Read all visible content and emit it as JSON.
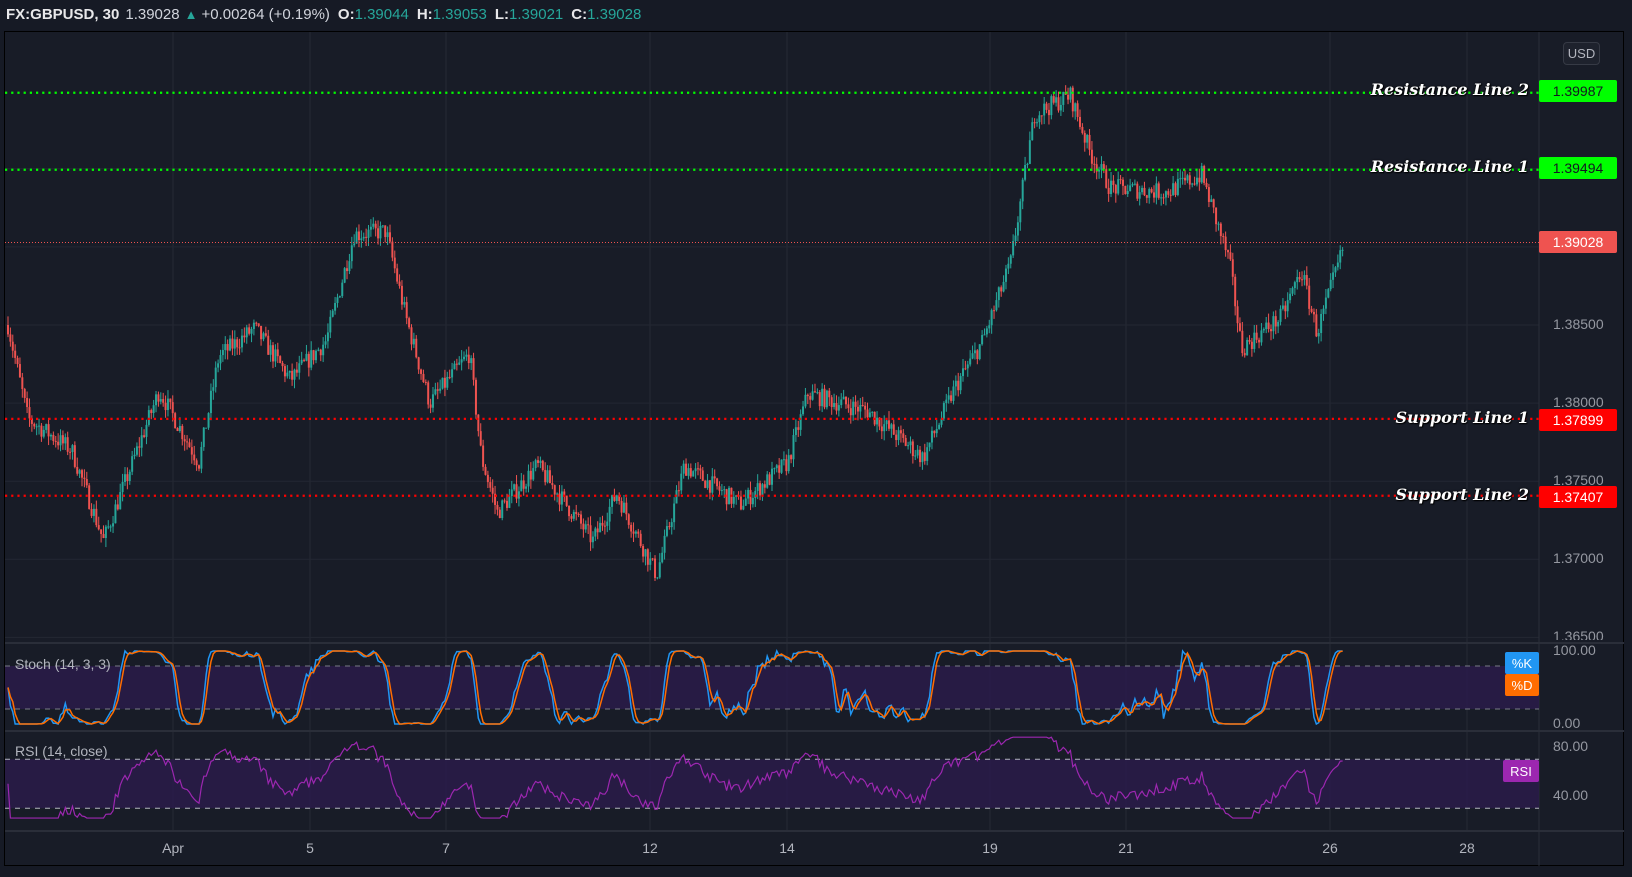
{
  "header": {
    "symbol": "FX:GBPUSD, 30",
    "last": "1.39028",
    "change": "+0.00264 (+0.19%)",
    "open_label": "O:",
    "open": "1.39044",
    "high_label": "H:",
    "high": "1.39053",
    "low_label": "L:",
    "low": "1.39021",
    "close_label": "C:",
    "close": "1.39028"
  },
  "currency_button": "USD",
  "price_axis": {
    "ticks": [
      "1.38500",
      "1.38000",
      "1.37500",
      "1.37000",
      "1.36500"
    ]
  },
  "levels": {
    "resistance_2": {
      "label": "Resistance Line 2",
      "price": "1.39987",
      "color": "#00ff00"
    },
    "resistance_1": {
      "label": "Resistance Line 1",
      "price": "1.39494",
      "color": "#00ff00"
    },
    "current": {
      "price": "1.39028",
      "color": "#ef5350"
    },
    "support_1": {
      "label": "Support Line 1",
      "price": "1.37899",
      "color": "#ff0000"
    },
    "support_2": {
      "label": "Support Line 2",
      "price": "1.37407",
      "color": "#ff0000"
    }
  },
  "stoch": {
    "title": "Stoch (14, 3, 3)",
    "k_label": "%K",
    "d_label": "%D",
    "axis": [
      "100.00",
      "0.00"
    ],
    "k_color": "#2196f3",
    "d_color": "#ff6d00"
  },
  "rsi": {
    "title": "RSI (14, close)",
    "label": "RSI",
    "axis": [
      "80.00",
      "40.00"
    ],
    "color": "#9c27b0"
  },
  "x_axis": {
    "labels": [
      "Apr",
      "5",
      "7",
      "12",
      "14",
      "19",
      "21",
      "26",
      "28"
    ]
  },
  "colors": {
    "up": "#26a69a",
    "down": "#ef5350",
    "background": "#181c27",
    "band": "#2a1a4a"
  },
  "chart_data": {
    "type": "candlestick",
    "title": "FX:GBPUSD, 30",
    "xlabel": "",
    "ylabel": "USD",
    "x_tick_labels": [
      "Apr",
      "5",
      "7",
      "12",
      "14",
      "19",
      "21",
      "26",
      "28"
    ],
    "ylim": [
      1.365,
      1.4015
    ],
    "price_path": [
      [
        0.0,
        1.385
      ],
      [
        0.5,
        1.379
      ],
      [
        1.6,
        1.377
      ],
      [
        2.4,
        1.3712
      ],
      [
        3.8,
        1.3808
      ],
      [
        4.8,
        1.3762
      ],
      [
        5.3,
        1.383
      ],
      [
        6.2,
        1.3848
      ],
      [
        7.1,
        1.3815
      ],
      [
        8.0,
        1.384
      ],
      [
        8.7,
        1.3908
      ],
      [
        9.5,
        1.391
      ],
      [
        10.0,
        1.3855
      ],
      [
        10.6,
        1.38
      ],
      [
        11.6,
        1.3832
      ],
      [
        11.9,
        1.3765
      ],
      [
        12.3,
        1.373
      ],
      [
        13.3,
        1.376
      ],
      [
        14.7,
        1.3712
      ],
      [
        15.3,
        1.3742
      ],
      [
        16.3,
        1.369
      ],
      [
        17.0,
        1.376
      ],
      [
        18.4,
        1.3735
      ],
      [
        19.6,
        1.3762
      ],
      [
        20.1,
        1.3806
      ],
      [
        21.6,
        1.3795
      ],
      [
        23.0,
        1.3765
      ],
      [
        23.8,
        1.381
      ],
      [
        24.5,
        1.384
      ],
      [
        25.2,
        1.389
      ],
      [
        25.8,
        1.3985
      ],
      [
        26.7,
        1.3997
      ],
      [
        27.2,
        1.396
      ],
      [
        27.7,
        1.3938
      ],
      [
        29.1,
        1.3935
      ],
      [
        30.0,
        1.3946
      ],
      [
        30.7,
        1.389
      ],
      [
        31.0,
        1.3835
      ],
      [
        32.0,
        1.3855
      ],
      [
        32.5,
        1.3885
      ],
      [
        32.9,
        1.3845
      ],
      [
        33.6,
        1.3903
      ]
    ],
    "horizontal_levels": [
      {
        "name": "Resistance Line 2",
        "value": 1.39987
      },
      {
        "name": "Resistance Line 1",
        "value": 1.39494
      },
      {
        "name": "Current Price",
        "value": 1.39028
      },
      {
        "name": "Support Line 1",
        "value": 1.37899
      },
      {
        "name": "Support Line 2",
        "value": 1.37407
      }
    ],
    "indicators": [
      {
        "name": "Stoch (14, 3, 3)",
        "series": [
          "%K",
          "%D"
        ],
        "range": [
          0,
          100
        ],
        "bands": [
          20,
          80
        ]
      },
      {
        "name": "RSI (14, close)",
        "series": [
          "RSI"
        ],
        "range": [
          20,
          90
        ],
        "bands": [
          30,
          70
        ]
      }
    ]
  }
}
